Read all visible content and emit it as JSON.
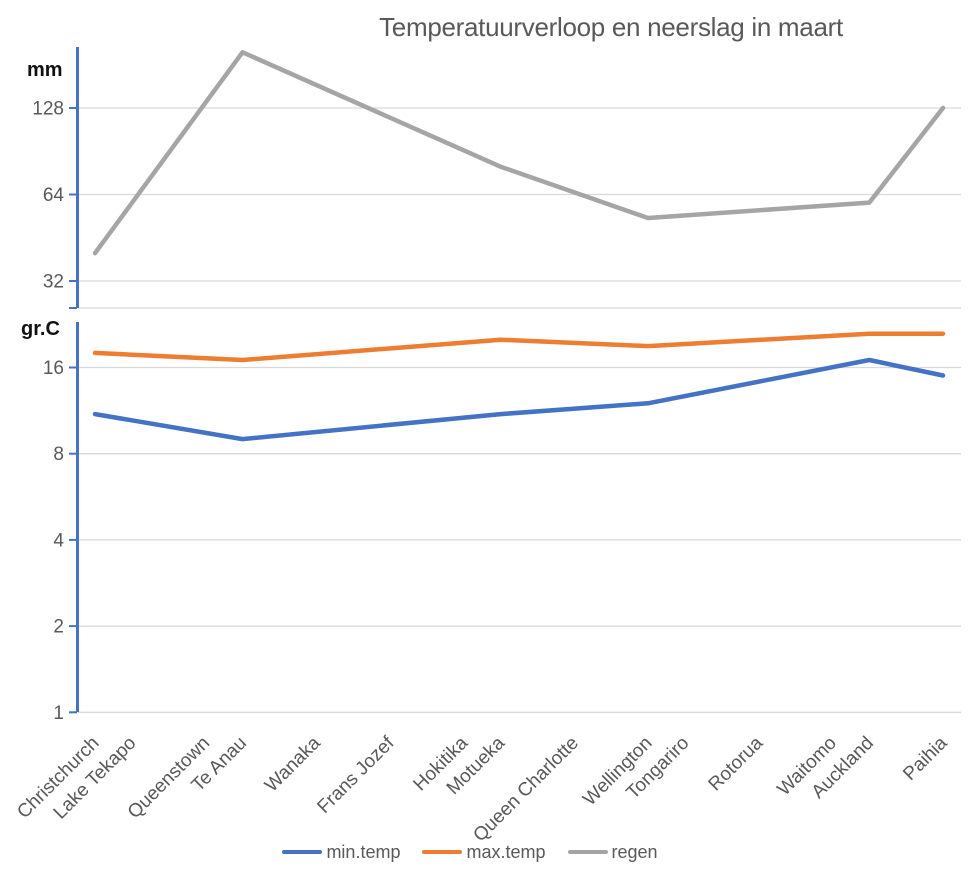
{
  "title": "Temperatuurverloop en neerslag in maart",
  "top_axis": {
    "unit": "mm",
    "ticks": [
      128,
      64,
      32
    ]
  },
  "bottom_axis": {
    "unit": "gr.C",
    "ticks": [
      16,
      8,
      4,
      2,
      1
    ]
  },
  "colors": {
    "accent_blue": "#4472C4",
    "accent_orange": "#ED7D31",
    "accent_gray": "#A5A5A5",
    "gridline": "#D9D9D9",
    "axis_line": "#4472C4",
    "text_muted": "#595959",
    "text_dark": "#111111"
  },
  "chart_data": {
    "type": "line",
    "title": "Temperatuurverloop en neerslag in maart",
    "x_axis": {
      "kind": "date-spaced category axis (trip-day positions, labels rotated 45°)",
      "categories": [
        {
          "label": "Christchurch",
          "day": 0
        },
        {
          "label": "Lake Tekapo",
          "day": 1
        },
        {
          "label": "Queenstown",
          "day": 3
        },
        {
          "label": "Te Anau",
          "day": 4
        },
        {
          "label": "Wanaka",
          "day": 6
        },
        {
          "label": "Frans Jozef",
          "day": 8
        },
        {
          "label": "Hokitika",
          "day": 10
        },
        {
          "label": "Motueka",
          "day": 11
        },
        {
          "label": "Queen Charlotte",
          "day": 13
        },
        {
          "label": "Wellington",
          "day": 15
        },
        {
          "label": "Tongariro",
          "day": 16
        },
        {
          "label": "Rotorua",
          "day": 18
        },
        {
          "label": "Waitomo",
          "day": 20
        },
        {
          "label": "Auckland",
          "day": 21
        },
        {
          "label": "Paihia",
          "day": 23
        }
      ]
    },
    "panels": [
      {
        "id": "neerslag",
        "unit": "mm",
        "scale": "log2",
        "gridlines": [
          128,
          64,
          32
        ],
        "ylim_approx": [
          26,
          208
        ]
      },
      {
        "id": "temperatuur",
        "unit": "gr.C",
        "scale": "log2",
        "gridlines": [
          16,
          8,
          4,
          2,
          1
        ],
        "ylim_approx": [
          1,
          23
        ]
      }
    ],
    "gaps": "cities without a value have no data point; line connects across gaps",
    "series": [
      {
        "name": "min.temp",
        "panel": "temperatuur",
        "color": "#4472C4",
        "values": [
          11,
          null,
          null,
          9,
          null,
          null,
          null,
          11,
          null,
          12,
          null,
          null,
          null,
          17,
          15
        ]
      },
      {
        "name": "max.temp",
        "panel": "temperatuur",
        "color": "#ED7D31",
        "values": [
          18,
          null,
          null,
          17,
          null,
          null,
          null,
          20,
          null,
          19,
          null,
          null,
          null,
          21,
          21
        ]
      },
      {
        "name": "regen",
        "panel": "neerslag",
        "color": "#A5A5A5",
        "values": [
          40,
          null,
          null,
          200,
          null,
          null,
          null,
          80,
          null,
          53,
          null,
          null,
          null,
          60,
          128
        ]
      }
    ],
    "legend_position": "bottom-center"
  }
}
